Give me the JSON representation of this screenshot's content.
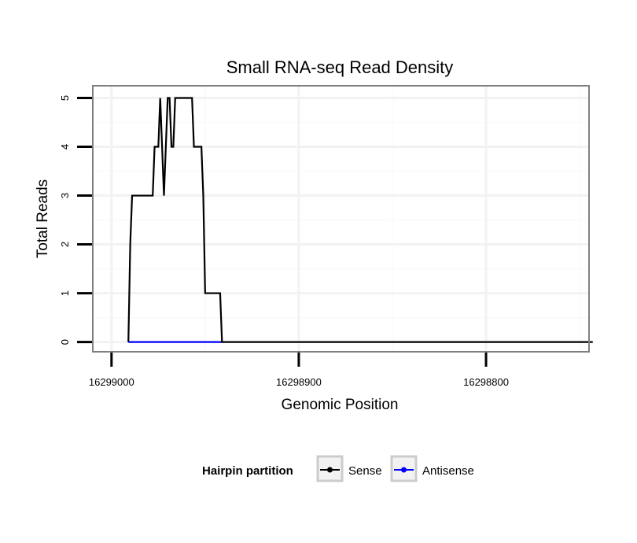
{
  "chart_data": {
    "type": "line",
    "title": "Small RNA-seq Read Density",
    "xlabel": "Genomic Position",
    "ylabel": "Total Reads",
    "xlim": [
      16299010,
      16298745
    ],
    "ylim": [
      -0.2,
      5.25
    ],
    "x_reversed": true,
    "xticks": [
      16299000,
      16298900,
      16298800
    ],
    "xtick_labels": [
      "16299000",
      "16298900",
      "16298800"
    ],
    "yticks": [
      0,
      1,
      2,
      3,
      4,
      5
    ],
    "ytick_labels": [
      "0",
      "1",
      "2",
      "3",
      "4",
      "5"
    ],
    "x_minor_grid": [
      16298950,
      16298850,
      16298750
    ],
    "y_minor_grid": [
      0.5,
      1.5,
      2.5,
      3.5,
      4.5
    ],
    "grid": true,
    "legend": {
      "title": "Hairpin partition",
      "placement": "bottom",
      "entries": [
        {
          "name": "Sense",
          "color": "#000000"
        },
        {
          "name": "Antisense",
          "color": "#0000ff"
        }
      ]
    },
    "series": [
      {
        "name": "Sense",
        "color": "#000000",
        "x": [
          16298991,
          16298990,
          16298989,
          16298978,
          16298977,
          16298975,
          16298974,
          16298973,
          16298972,
          16298970,
          16298969,
          16298968,
          16298967,
          16298966,
          16298965,
          16298964,
          16298963,
          16298962,
          16298957,
          16298956,
          16298953,
          16298952,
          16298951,
          16298950,
          16298949,
          16298948,
          16298947,
          16298942,
          16298941,
          16298940,
          16298743
        ],
        "values": [
          0,
          2,
          3,
          3,
          4,
          4,
          5,
          4,
          3,
          5,
          5,
          4,
          4,
          5,
          5,
          5,
          5,
          5,
          5,
          4,
          4,
          4,
          3,
          1,
          1,
          1,
          1,
          1,
          0,
          0,
          0
        ]
      },
      {
        "name": "Antisense",
        "color": "#0000ff",
        "x": [
          16298991,
          16298941
        ],
        "values": [
          0,
          0
        ]
      }
    ]
  }
}
